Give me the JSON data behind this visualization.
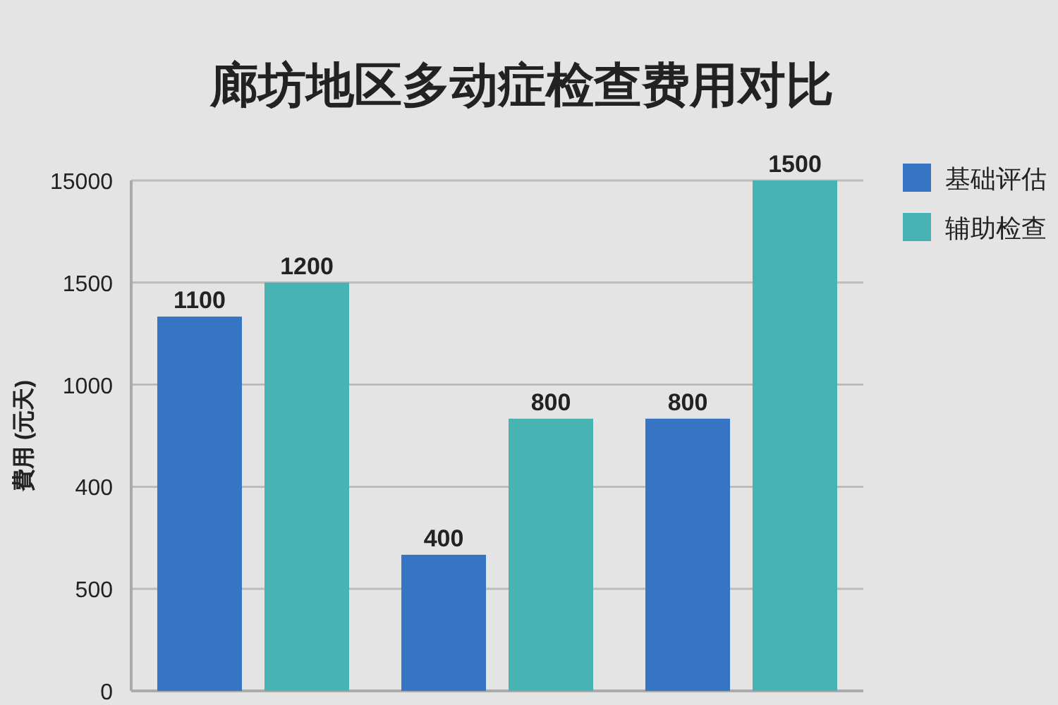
{
  "chart_data": {
    "type": "bar",
    "title": "廊坊地区多动症检查费用对比",
    "ylabel": "費用 (元天)",
    "categories": [
      null,
      null,
      null
    ],
    "series": [
      {
        "name": "基础评估",
        "color": "#3575c4",
        "values": [
          1100,
          400,
          800
        ]
      },
      {
        "name": "辅助检查",
        "color": "#47b3b3",
        "values": [
          1200,
          800,
          1500
        ]
      }
    ],
    "annotations": [
      "15000",
      "1500",
      "1000",
      "400",
      "500",
      "0"
    ],
    "grid": "y",
    "legend": "top right",
    "data_labels": true
  }
}
